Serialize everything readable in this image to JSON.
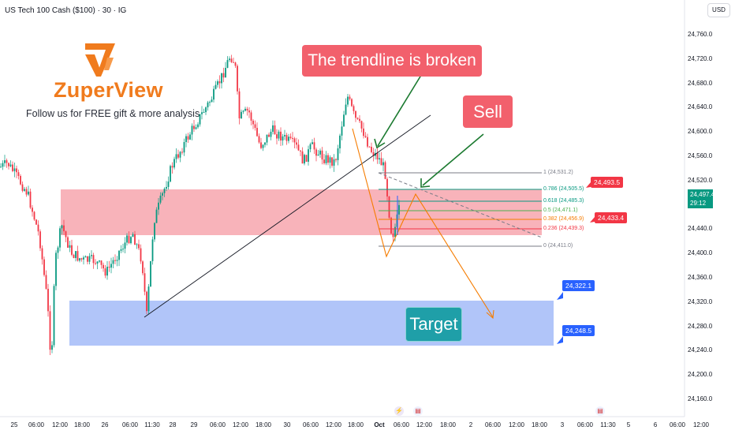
{
  "symbol": {
    "title": "US Tech 100 Cash ($100) · 30 · IG"
  },
  "currency": {
    "label": "USD"
  },
  "brand": {
    "name": "ZuperView",
    "tagline": "Follow us for FREE gift & more analysis"
  },
  "annotations": {
    "trendline_callout": "The trendline is broken",
    "sell_callout": "Sell",
    "target_label": "Target"
  },
  "price_axis": {
    "ticks": [
      "24,760.0",
      "24,720.0",
      "24,680.0",
      "24,640.0",
      "24,600.0",
      "24,560.0",
      "24,520.0",
      "24,480.0",
      "24,440.0",
      "24,400.0",
      "24,360.0",
      "24,320.0",
      "24,280.0",
      "24,240.0",
      "24,200.0",
      "24,160.0"
    ],
    "current_price": "24,497.4",
    "countdown": "29:12"
  },
  "time_axis": {
    "ticks": [
      "25",
      "06:00",
      "12:00",
      "18:00",
      "26",
      "06:00",
      "11:30",
      "28",
      "29",
      "06:00",
      "12:00",
      "18:00",
      "30",
      "06:00",
      "12:00",
      "18:00",
      "Oct",
      "06:00",
      "12:00",
      "18:00",
      "2",
      "06:00",
      "12:00",
      "18:00",
      "3",
      "06:00",
      "11:30",
      "5",
      "6",
      "06:00",
      "12:00"
    ]
  },
  "fibonacci": {
    "levels": [
      {
        "label": "1 (24,531.2)",
        "color": "#787b86"
      },
      {
        "label": "0.786 (24,505.5)",
        "color": "#089981"
      },
      {
        "label": "0.618 (24,485.3)",
        "color": "#089981"
      },
      {
        "label": "0.5 (24,471.1)",
        "color": "#4caf50"
      },
      {
        "label": "0.382 (24,456.9)",
        "color": "#f57c00"
      },
      {
        "label": "0.236 (24,439.3)",
        "color": "#f23645"
      },
      {
        "label": "0 (24,411.0)",
        "color": "#787b86"
      }
    ]
  },
  "price_tags": {
    "upper_zone": "24,493.5",
    "lower_zone": "24,433.4",
    "target_top": "24,322.1",
    "target_bottom": "24,248.5"
  },
  "colors": {
    "up_candle": "#089981",
    "down_candle": "#f23645",
    "supply_zone": "#f7a6ae",
    "target_zone": "#a9bff8",
    "projection": "#f57c00",
    "callout": "#f2606c",
    "brand": "#f07b1d"
  },
  "icons": [
    "zuperview-logo-icon",
    "lightning-event-icon",
    "us-flag-event-icon"
  ]
}
